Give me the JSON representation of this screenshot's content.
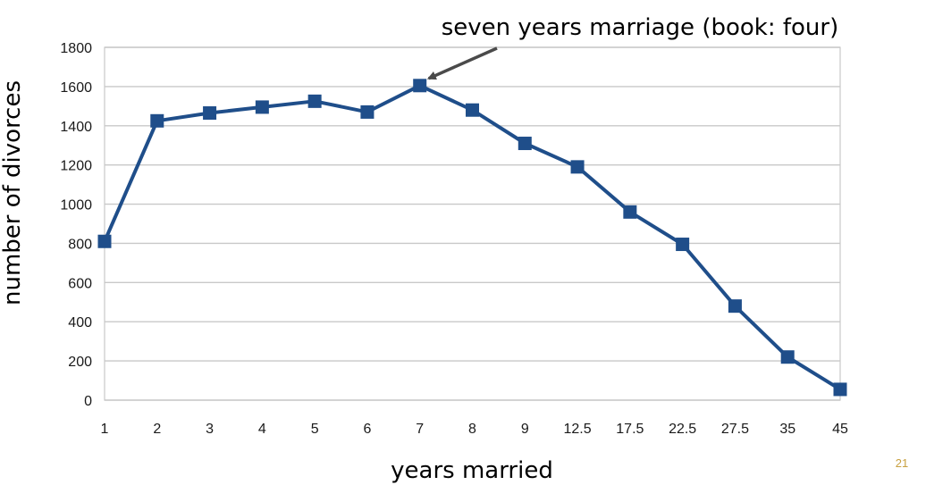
{
  "chart_data": {
    "type": "line",
    "title": "",
    "xlabel": "years married",
    "ylabel": "number of divorces",
    "categories": [
      "1",
      "2",
      "3",
      "4",
      "5",
      "6",
      "7",
      "8",
      "9",
      "12.5",
      "17.5",
      "22.5",
      "27.5",
      "35",
      "45"
    ],
    "series": [
      {
        "values": [
          810,
          1425,
          1465,
          1495,
          1525,
          1470,
          1605,
          1480,
          1310,
          1190,
          960,
          795,
          480,
          220,
          55
        ]
      }
    ],
    "ylim": [
      0,
      1800
    ],
    "yticks": [
      0,
      200,
      400,
      600,
      800,
      1000,
      1200,
      1400,
      1600,
      1800
    ],
    "grid": true,
    "legend": "none",
    "annotation": {
      "text": "seven years marriage (book: four)",
      "target_category": "7"
    },
    "colors": {
      "series": "#1f4e8a",
      "grid": "#c8c8c8",
      "arrow": "#4a4a4a"
    }
  },
  "page_number": "21"
}
